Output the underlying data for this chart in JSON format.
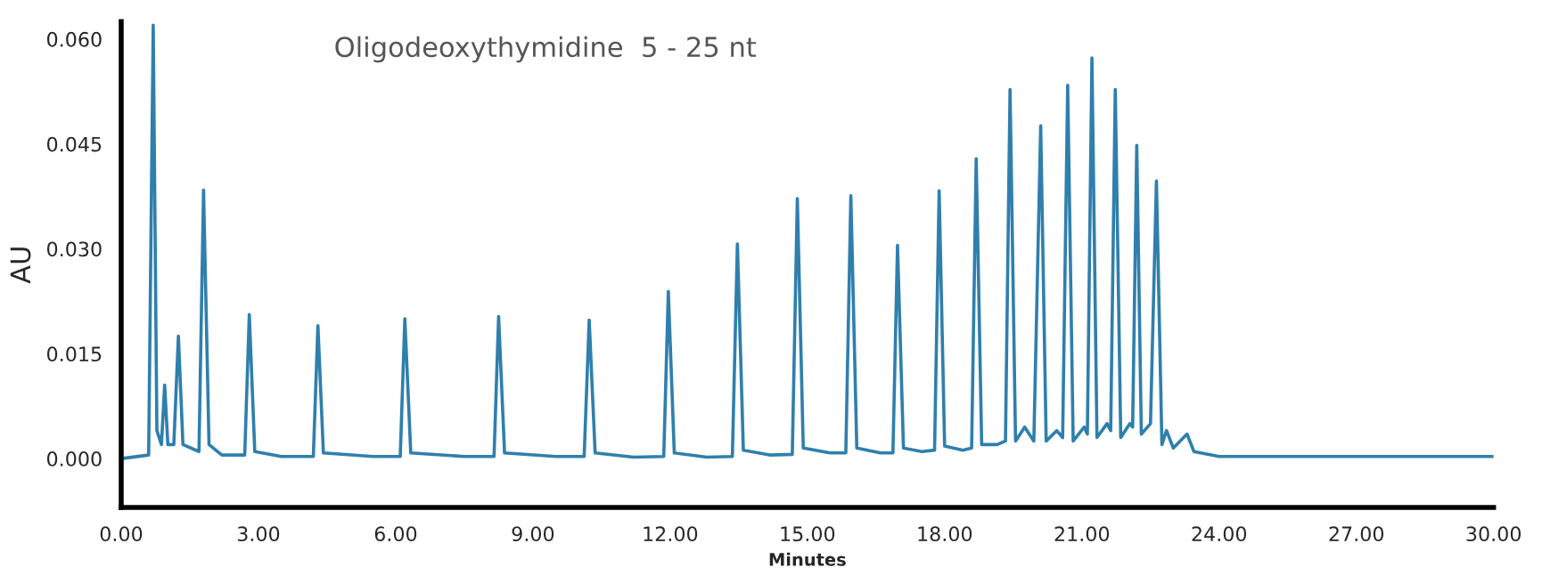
{
  "chart_data": {
    "type": "line",
    "title": "Oligodeoxythymidine  5 - 25 nt",
    "xlabel": "Minutes",
    "ylabel": "AU",
    "xlim": [
      0,
      30
    ],
    "ylim": [
      -0.007,
      0.0625
    ],
    "xticks": [
      {
        "value": 0,
        "label": "0.00"
      },
      {
        "value": 3,
        "label": "3.00"
      },
      {
        "value": 6,
        "label": "6.00"
      },
      {
        "value": 9,
        "label": "9.00"
      },
      {
        "value": 12,
        "label": "12.00"
      },
      {
        "value": 15,
        "label": "15.00"
      },
      {
        "value": 18,
        "label": "18.00"
      },
      {
        "value": 21,
        "label": "21.00"
      },
      {
        "value": 24,
        "label": "24.00"
      },
      {
        "value": 27,
        "label": "27.00"
      },
      {
        "value": 30,
        "label": "30.00"
      }
    ],
    "yticks": [
      {
        "value": 0,
        "label": "0.000"
      },
      {
        "value": 0.015,
        "label": "0.015"
      },
      {
        "value": 0.03,
        "label": "0.030"
      },
      {
        "value": 0.045,
        "label": "0.045"
      },
      {
        "value": 0.06,
        "label": "0.060"
      }
    ],
    "grid": false,
    "legend": false,
    "marker": "none",
    "line_style": "solid",
    "series": [
      {
        "color": "#2f7fad",
        "x": [
          0.0,
          0.6,
          0.7,
          0.78,
          0.88,
          0.95,
          1.02,
          1.15,
          1.25,
          1.35,
          1.7,
          1.8,
          1.92,
          2.2,
          2.7,
          2.8,
          2.92,
          3.5,
          4.2,
          4.3,
          4.42,
          5.5,
          6.1,
          6.2,
          6.33,
          7.5,
          8.15,
          8.25,
          8.38,
          9.5,
          10.12,
          10.23,
          10.36,
          11.2,
          11.86,
          11.96,
          12.09,
          12.8,
          13.36,
          13.47,
          13.6,
          14.2,
          14.67,
          14.78,
          14.91,
          15.5,
          15.84,
          15.95,
          16.08,
          16.6,
          16.87,
          16.97,
          17.1,
          17.5,
          17.78,
          17.88,
          18.0,
          18.4,
          18.59,
          18.69,
          18.81,
          19.15,
          19.33,
          19.43,
          19.55,
          19.75,
          19.95,
          20.1,
          20.22,
          20.45,
          20.58,
          20.69,
          20.81,
          21.05,
          21.12,
          21.22,
          21.33,
          21.55,
          21.63,
          21.73,
          21.85,
          22.05,
          22.11,
          22.2,
          22.3,
          22.5,
          22.63,
          22.75,
          22.85,
          23.0,
          23.3,
          23.45,
          24.0,
          27.0,
          30.0
        ],
        "values": [
          0.0,
          0.0005,
          0.062,
          0.004,
          0.002,
          0.0105,
          0.002,
          0.002,
          0.0175,
          0.002,
          0.001,
          0.0384,
          0.002,
          0.0005,
          0.0005,
          0.0206,
          0.001,
          0.0003,
          0.0003,
          0.019,
          0.0008,
          0.0003,
          0.0003,
          0.02,
          0.0008,
          0.0003,
          0.0003,
          0.0203,
          0.0008,
          0.0003,
          0.0003,
          0.0198,
          0.0008,
          0.0002,
          0.0003,
          0.0239,
          0.0008,
          0.0002,
          0.0003,
          0.0307,
          0.0012,
          0.0005,
          0.0006,
          0.0372,
          0.0015,
          0.0008,
          0.0008,
          0.0376,
          0.0015,
          0.0008,
          0.0008,
          0.0305,
          0.0015,
          0.001,
          0.0012,
          0.0383,
          0.0018,
          0.0012,
          0.0015,
          0.0429,
          0.002,
          0.002,
          0.0025,
          0.0528,
          0.0025,
          0.0045,
          0.0025,
          0.0476,
          0.0025,
          0.004,
          0.003,
          0.0534,
          0.0025,
          0.0045,
          0.0035,
          0.0573,
          0.003,
          0.005,
          0.004,
          0.0528,
          0.003,
          0.005,
          0.0045,
          0.0448,
          0.0035,
          0.005,
          0.0397,
          0.002,
          0.004,
          0.0015,
          0.0035,
          0.001,
          0.0003,
          0.0003,
          0.0003
        ]
      }
    ]
  }
}
